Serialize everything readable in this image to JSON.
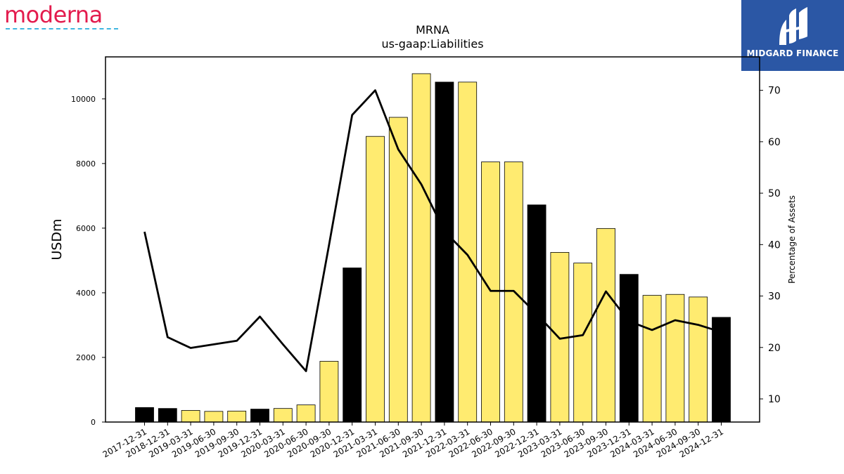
{
  "logos": {
    "left_text": "moderna",
    "right_text": "MIDGARD FINANCE"
  },
  "chart_data": {
    "type": "bar",
    "title": "MRNA",
    "subtitle": "us-gaap:Liabilities",
    "ylabel": "USDm",
    "y2label": "Percentage of Assets",
    "ylim": [
      0,
      11300
    ],
    "y2lim": [
      5.5,
      76.5
    ],
    "yticks": [
      0,
      2000,
      4000,
      6000,
      8000,
      10000
    ],
    "y2ticks": [
      10,
      20,
      30,
      40,
      50,
      60,
      70
    ],
    "categories": [
      "2017-12-31",
      "2018-12-31",
      "2019-03-31",
      "2019-06-30",
      "2019-09-30",
      "2019-12-31",
      "2020-03-31",
      "2020-06-30",
      "2020-09-30",
      "2020-12-31",
      "2021-03-31",
      "2021-06-30",
      "2021-09-30",
      "2021-12-31",
      "2022-03-31",
      "2022-06-30",
      "2022-09-30",
      "2022-12-31",
      "2023-03-31",
      "2023-06-30",
      "2023-09-30",
      "2023-12-31",
      "2024-03-31",
      "2024-06-30",
      "2024-09-30",
      "2024-12-31"
    ],
    "series": [
      {
        "type": "bar",
        "values": [
          450,
          420,
          360,
          330,
          340,
          400,
          420,
          530,
          1880,
          4770,
          8840,
          9430,
          10780,
          10520,
          10520,
          8050,
          8050,
          6720,
          5250,
          4920,
          5990,
          4570,
          3920,
          3950,
          3870,
          3240
        ],
        "annual": [
          true,
          true,
          false,
          false,
          false,
          true,
          false,
          false,
          false,
          true,
          false,
          false,
          false,
          true,
          false,
          false,
          false,
          true,
          false,
          false,
          false,
          true,
          false,
          false,
          false,
          true
        ],
        "colors": {
          "annual": "#000000",
          "quarterly": "#ffeb70"
        }
      },
      {
        "type": "line",
        "axis": "right",
        "values": [
          42.5,
          22.0,
          19.9,
          20.6,
          21.3,
          26.0,
          20.6,
          15.4,
          40.0,
          65.2,
          70.0,
          58.5,
          51.7,
          42.6,
          38.0,
          31.0,
          31.0,
          26.5,
          21.7,
          22.4,
          30.9,
          25.1,
          23.4,
          25.3,
          24.4,
          23.0
        ],
        "color": "#000000"
      }
    ]
  }
}
